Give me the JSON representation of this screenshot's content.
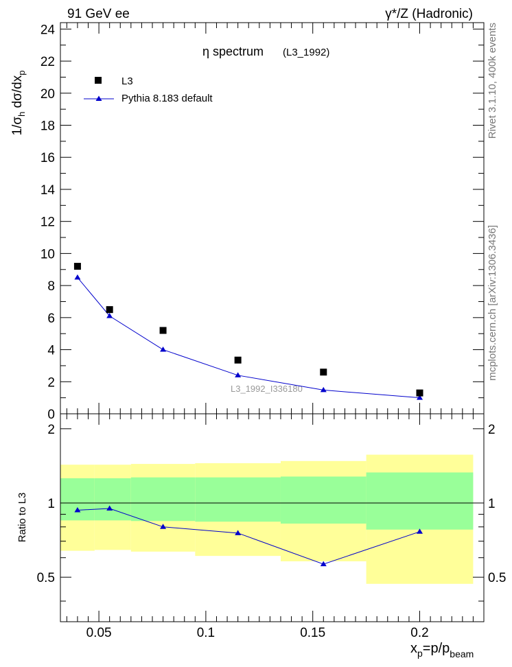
{
  "header": {
    "left": "91 GeV ee",
    "right": "γ*/Z (Hadronic)"
  },
  "side_notes": {
    "rivet": "Rivet 3.1.10,  400k events",
    "mcplots": "mcplots.cern.ch [arXiv:1306.3436]"
  },
  "chart_data": [
    {
      "type": "scatter",
      "title": "η spectrum",
      "subtitle": "(L3_1992)",
      "ylabel": "1/σ_h dσ/dx_p",
      "watermark": "L3_1992_I336180",
      "xlim": [
        0.032,
        0.23
      ],
      "ylim": [
        0,
        24.4
      ],
      "yticks": [
        0,
        2,
        4,
        6,
        8,
        10,
        12,
        14,
        16,
        18,
        20,
        22,
        24
      ],
      "legend_position": "top-left",
      "series": [
        {
          "name": "L3",
          "style": "marker",
          "color": "#000000",
          "x": [
            0.04,
            0.055,
            0.08,
            0.115,
            0.155,
            0.2
          ],
          "y": [
            9.2,
            6.5,
            5.2,
            3.35,
            2.6,
            1.3
          ]
        },
        {
          "name": "Pythia 8.183 default",
          "style": "line-marker",
          "color": "#0000cc",
          "x": [
            0.04,
            0.055,
            0.08,
            0.115,
            0.155,
            0.2
          ],
          "y": [
            8.5,
            6.1,
            4.0,
            2.4,
            1.48,
            1.0
          ]
        }
      ]
    },
    {
      "type": "line",
      "ylabel": "Ratio to L3",
      "xlabel": "x_p=p/p_beam",
      "xlim": [
        0.032,
        0.23
      ],
      "ylim": [
        0.33,
        2.3
      ],
      "xticks": [
        0.05,
        0.1,
        0.15,
        0.2
      ],
      "yticks": [
        0.5,
        1,
        2
      ],
      "bins": [
        {
          "lo": 0.032,
          "hi": 0.048,
          "band_inner": [
            0.85,
            1.26
          ],
          "band_outer": [
            0.64,
            1.43
          ]
        },
        {
          "lo": 0.048,
          "hi": 0.065,
          "band_inner": [
            0.85,
            1.26
          ],
          "band_outer": [
            0.645,
            1.43
          ]
        },
        {
          "lo": 0.065,
          "hi": 0.095,
          "band_inner": [
            0.845,
            1.27
          ],
          "band_outer": [
            0.635,
            1.44
          ]
        },
        {
          "lo": 0.095,
          "hi": 0.135,
          "band_inner": [
            0.84,
            1.27
          ],
          "band_outer": [
            0.61,
            1.45
          ]
        },
        {
          "lo": 0.135,
          "hi": 0.175,
          "band_inner": [
            0.825,
            1.28
          ],
          "band_outer": [
            0.58,
            1.48
          ]
        },
        {
          "lo": 0.175,
          "hi": 0.225,
          "band_inner": [
            0.78,
            1.33
          ],
          "band_outer": [
            0.47,
            1.57
          ]
        }
      ],
      "series": [
        {
          "name": "Pythia 8.183 default",
          "color": "#0000cc",
          "x": [
            0.04,
            0.055,
            0.08,
            0.115,
            0.155,
            0.2
          ],
          "y": [
            0.935,
            0.95,
            0.8,
            0.755,
            0.565,
            0.765
          ]
        }
      ],
      "band_colors": {
        "inner": "#99ff99",
        "outer": "#ffff99"
      }
    }
  ]
}
